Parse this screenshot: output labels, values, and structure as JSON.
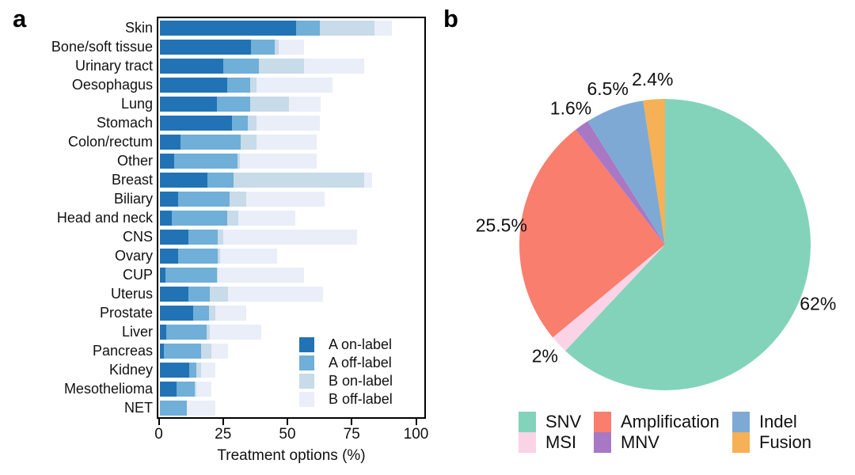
{
  "figure": {
    "panel_a_label": "a",
    "panel_b_label": "b"
  },
  "chart_data": [
    {
      "id": "treatment-options-by-tumour-type",
      "type": "bar",
      "orientation": "horizontal",
      "stacked": true,
      "grid": false,
      "xlabel": "Treatment options (%)",
      "xticks": [
        0,
        25,
        50,
        75,
        100
      ],
      "xlim": [
        0,
        100
      ],
      "legend_position": "inside-bottom-right",
      "categories": [
        "Skin",
        "Bone/soft tissue",
        "Urinary tract",
        "Oesophagus",
        "Lung",
        "Stomach",
        "Colon/rectum",
        "Other",
        "Breast",
        "Biliary",
        "Head and neck",
        "CNS",
        "Ovary",
        "CUP",
        "Uterus",
        "Prostate",
        "Liver",
        "Pancreas",
        "Kidney",
        "Mesothelioma",
        "NET"
      ],
      "series": [
        {
          "name": "A on-label",
          "color": "#2273b5",
          "values": [
            53,
            35.5,
            24.5,
            26,
            22,
            28,
            8,
            5.5,
            18.5,
            7,
            4.5,
            11,
            7,
            2,
            11,
            13,
            2.5,
            1.5,
            11.5,
            6.5,
            0
          ]
        },
        {
          "name": "A off-label",
          "color": "#6fafd8",
          "values": [
            9,
            9,
            14,
            9,
            13,
            6,
            23.5,
            24.5,
            10,
            20,
            21.5,
            11.5,
            15.5,
            20,
            8.5,
            6,
            15.5,
            14.5,
            2.5,
            7,
            10.5
          ]
        },
        {
          "name": "B on-label",
          "color": "#c7dbe9",
          "values": [
            21.5,
            1.5,
            17.5,
            2.5,
            15,
            3.5,
            6,
            1,
            51,
            6.5,
            4.5,
            2,
            1,
            0.5,
            7,
            2.5,
            1.5,
            4,
            2,
            0.5,
            0
          ]
        },
        {
          "name": "B off-label",
          "color": "#e9eef8",
          "values": [
            6.5,
            10,
            23.5,
            29.5,
            12.5,
            24.5,
            23.5,
            30,
            3,
            30.5,
            22,
            52,
            22,
            33.5,
            37,
            12,
            20,
            6.5,
            5.5,
            6,
            11
          ]
        }
      ]
    },
    {
      "id": "variant-type-distribution",
      "type": "pie",
      "direction": "clockwise",
      "start_angle_deg": 0,
      "legend_position": "bottom",
      "slices": [
        {
          "name": "SNV",
          "value": 62,
          "label": "62%",
          "color": "#83d3bb"
        },
        {
          "name": "MSI",
          "value": 2,
          "label": "2%",
          "color": "#fbd3e7"
        },
        {
          "name": "Amplification",
          "value": 25.5,
          "label": "25.5%",
          "color": "#f97e6e"
        },
        {
          "name": "MNV",
          "value": 1.6,
          "label": "1.6%",
          "color": "#a878c5"
        },
        {
          "name": "Indel",
          "value": 6.5,
          "label": "6.5%",
          "color": "#7ea9d4"
        },
        {
          "name": "Fusion",
          "value": 2.4,
          "label": "2.4%",
          "color": "#f6b055"
        }
      ],
      "legend_rows": [
        [
          "SNV",
          "Amplification",
          "Indel"
        ],
        [
          "MSI",
          "MNV",
          "Fusion"
        ]
      ]
    }
  ]
}
